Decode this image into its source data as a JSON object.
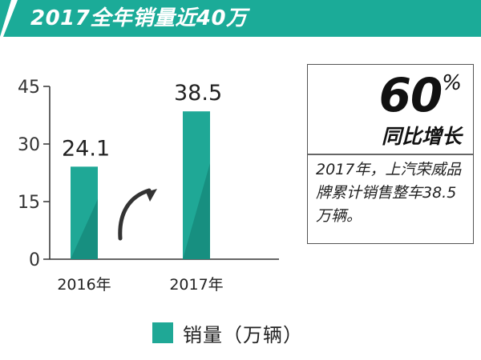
{
  "header": {
    "title": "2017全年销量近40万"
  },
  "colors": {
    "accent": "#1bab98",
    "accent_light": "#23b8a6",
    "accent_dark": "#0f8a7c",
    "bar_main": "#1fa896",
    "bar_shade": "#178f80"
  },
  "chart_data": {
    "type": "bar",
    "categories": [
      "2016年",
      "2017年"
    ],
    "values": [
      24.1,
      38.5
    ],
    "value_labels": [
      "24.1",
      "38.5"
    ],
    "yticks": [
      "0",
      "15",
      "30",
      "45"
    ],
    "ylim": [
      0,
      45
    ],
    "grid": false,
    "legend": "bottom",
    "series": [
      {
        "name": "销量（万辆）",
        "values": [
          24.1,
          38.5
        ]
      }
    ]
  },
  "legend": {
    "label": "销量（万辆）"
  },
  "callout": {
    "big_number": "60",
    "percent_sign": "%",
    "growth_label": "同比增长",
    "description": "2017年，上汽荣威品牌累计销售整车38.5万辆。"
  }
}
